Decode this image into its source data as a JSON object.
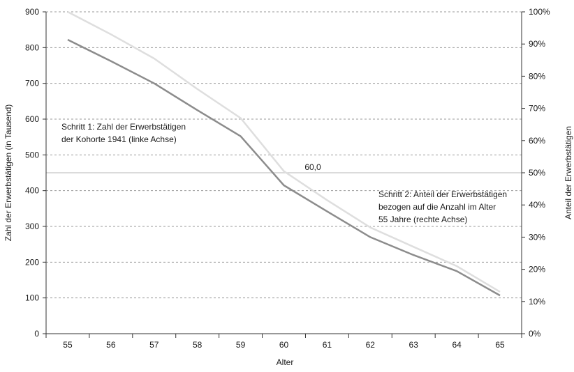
{
  "chart_data": {
    "type": "line",
    "xlabel": "Alter",
    "ylabel_left": "Zahl der Erwerbstätigen (in Tausend)",
    "ylabel_right": "Anteil der Erwerbstätigen",
    "categories": [
      "55",
      "56",
      "57",
      "58",
      "59",
      "60",
      "61",
      "62",
      "63",
      "64",
      "65"
    ],
    "ylim_left": [
      0,
      900
    ],
    "yticks_left": [
      "0",
      "100",
      "200",
      "300",
      "400",
      "500",
      "600",
      "700",
      "800",
      "900"
    ],
    "ylim_right": [
      0,
      100
    ],
    "yticks_right": [
      "0%",
      "10%",
      "20%",
      "30%",
      "40%",
      "50%",
      "60%",
      "70%",
      "80%",
      "90%",
      "100%"
    ],
    "grid": "horizontal dashed",
    "series": [
      {
        "axis": "left",
        "color": "#8c8c8c",
        "values": [
          822,
          762,
          700,
          625,
          552,
          415,
          342,
          270,
          220,
          175,
          107
        ]
      },
      {
        "axis": "right",
        "color": "#dedede",
        "values": [
          100,
          93,
          85.5,
          76,
          67,
          50.5,
          41.5,
          33,
          27,
          21,
          13
        ]
      }
    ],
    "reference_line": {
      "axis": "right",
      "value": 50,
      "color": "#cfcfcf",
      "label": "60,0"
    },
    "annotations": [
      {
        "lines": [
          "Schritt 1: Zahl der Erwerbstätigen",
          "der Kohorte 1941 (linke Achse)"
        ]
      },
      {
        "lines": [
          "Schritt 2: Anteil der Erwerbstätigen",
          "bezogen auf die Anzahl im Alter",
          "55 Jahre (rechte Achse)"
        ]
      }
    ]
  }
}
